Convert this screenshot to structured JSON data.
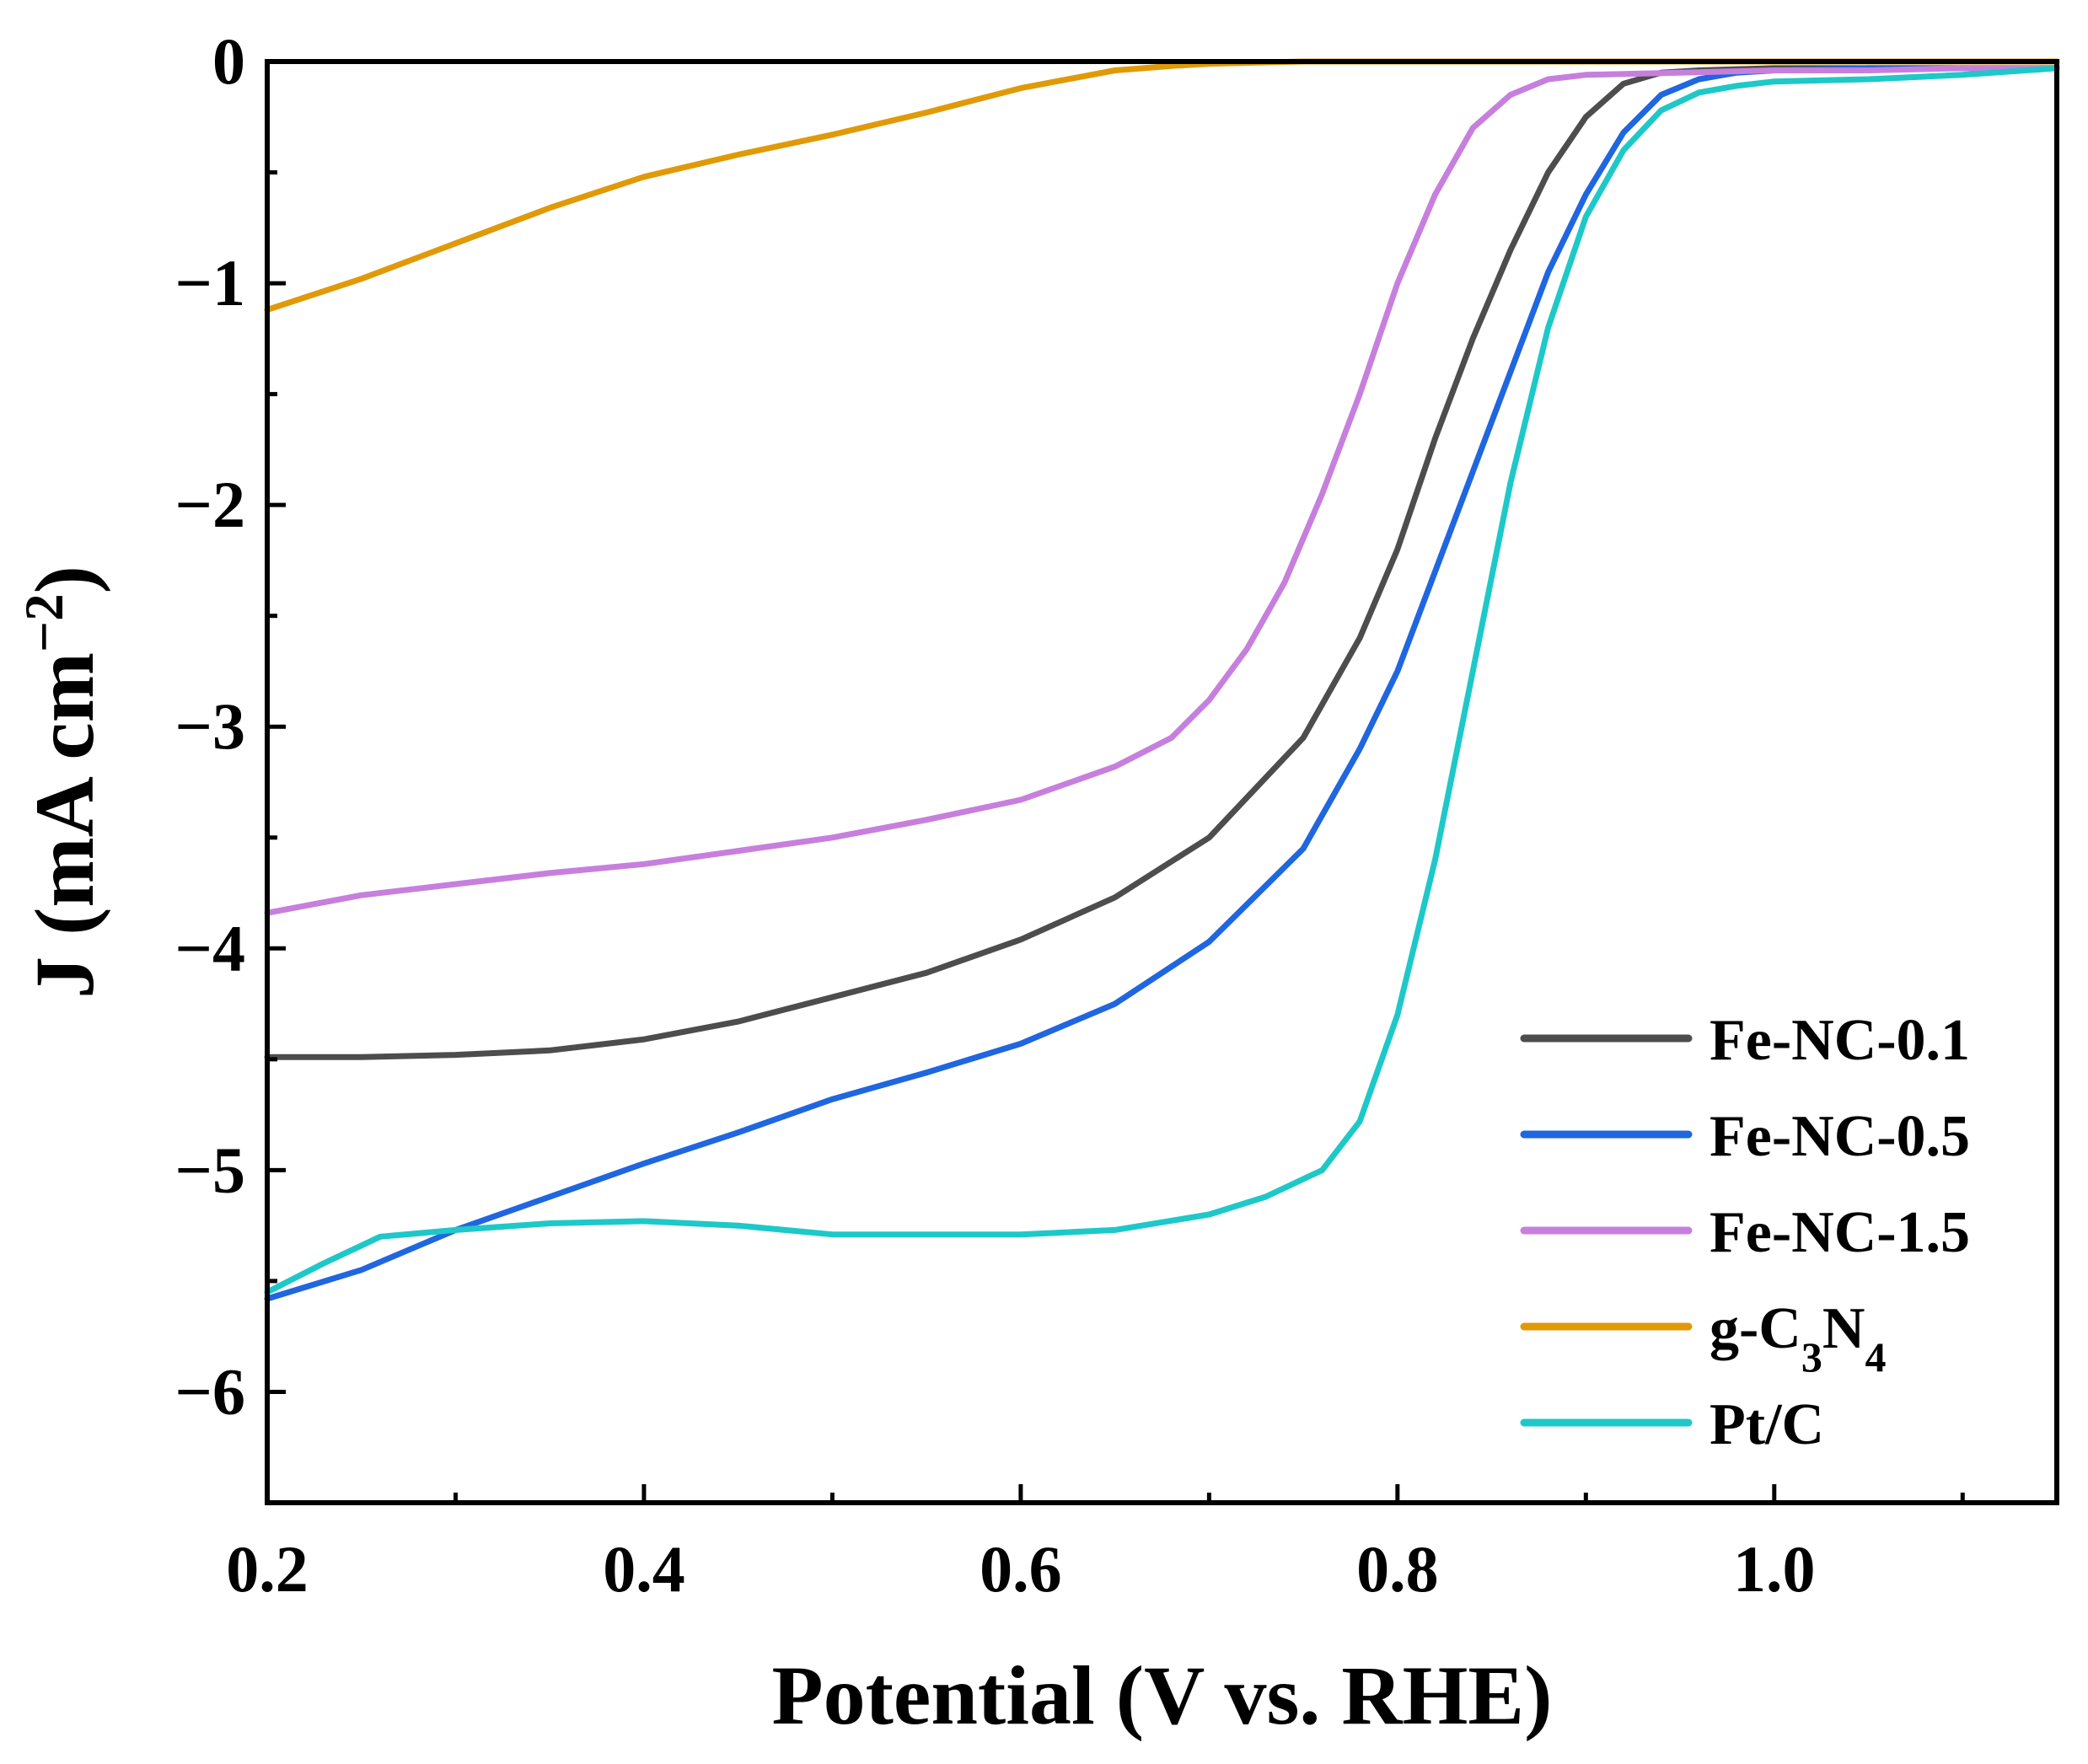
{
  "chart_data": {
    "type": "line",
    "title": "",
    "xlabel": "Potential (V vs. RHE)",
    "ylabel": {
      "main": "J (mA cm",
      "sup": "−2",
      "end": ")"
    },
    "xlim": [
      0.2,
      1.15
    ],
    "ylim": [
      -6.5,
      0
    ],
    "x_ticks": [
      {
        "value": 0.2,
        "label": "0.2"
      },
      {
        "value": 0.4,
        "label": "0.4"
      },
      {
        "value": 0.6,
        "label": "0.6"
      },
      {
        "value": 0.8,
        "label": "0.8"
      },
      {
        "value": 1.0,
        "label": "1.0"
      }
    ],
    "x_minor_ticks": [
      0.3,
      0.5,
      0.7,
      0.9,
      1.1
    ],
    "y_ticks": [
      {
        "value": 0,
        "label": "0"
      },
      {
        "value": -1,
        "label": "−1"
      },
      {
        "value": -2,
        "label": "−2"
      },
      {
        "value": -3,
        "label": "−3"
      },
      {
        "value": -4,
        "label": "−4"
      },
      {
        "value": -5,
        "label": "−5"
      },
      {
        "value": -6,
        "label": "−6"
      }
    ],
    "y_minor_ticks": [
      -0.5,
      -1.5,
      -2.5,
      -3.5,
      -4.5,
      -5.5
    ],
    "grid": false,
    "legend_position": "bottom-right",
    "series": [
      {
        "name": "Fe-NC-0.1",
        "legend": [
          {
            "t": "Fe-NC-0.1"
          }
        ],
        "color": "#4d4d4d",
        "x": [
          0.2,
          0.25,
          0.3,
          0.35,
          0.4,
          0.45,
          0.5,
          0.55,
          0.6,
          0.65,
          0.7,
          0.75,
          0.78,
          0.8,
          0.82,
          0.84,
          0.86,
          0.88,
          0.9,
          0.92,
          0.94,
          0.96,
          1.0,
          1.05,
          1.1,
          1.15
        ],
        "y": [
          -4.49,
          -4.49,
          -4.48,
          -4.46,
          -4.41,
          -4.33,
          -4.22,
          -4.11,
          -3.96,
          -3.77,
          -3.5,
          -3.05,
          -2.6,
          -2.2,
          -1.7,
          -1.25,
          -0.85,
          -0.5,
          -0.25,
          -0.1,
          -0.05,
          -0.04,
          -0.03,
          -0.03,
          -0.03,
          -0.03
        ]
      },
      {
        "name": "Fe-NC-0.5",
        "legend": [
          {
            "t": "Fe-NC-0.5"
          }
        ],
        "color": "#1f66e0",
        "x": [
          0.2,
          0.25,
          0.3,
          0.35,
          0.4,
          0.45,
          0.5,
          0.55,
          0.6,
          0.65,
          0.7,
          0.75,
          0.78,
          0.8,
          0.82,
          0.84,
          0.86,
          0.88,
          0.9,
          0.92,
          0.94,
          0.96,
          0.98,
          1.0,
          1.05,
          1.1,
          1.15
        ],
        "y": [
          -5.58,
          -5.45,
          -5.27,
          -5.12,
          -4.97,
          -4.83,
          -4.68,
          -4.56,
          -4.43,
          -4.25,
          -3.97,
          -3.55,
          -3.1,
          -2.75,
          -2.3,
          -1.85,
          -1.4,
          -0.95,
          -0.6,
          -0.32,
          -0.15,
          -0.08,
          -0.05,
          -0.04,
          -0.03,
          -0.03,
          -0.03
        ]
      },
      {
        "name": "Fe-NC-1.5",
        "legend": [
          {
            "t": "Fe-NC-1.5"
          }
        ],
        "color": "#c77fdd",
        "x": [
          0.2,
          0.25,
          0.3,
          0.35,
          0.4,
          0.45,
          0.5,
          0.55,
          0.6,
          0.65,
          0.68,
          0.7,
          0.72,
          0.74,
          0.76,
          0.78,
          0.8,
          0.82,
          0.84,
          0.86,
          0.88,
          0.9,
          0.95,
          1.0,
          1.05,
          1.1,
          1.15
        ],
        "y": [
          -3.84,
          -3.76,
          -3.71,
          -3.66,
          -3.62,
          -3.56,
          -3.5,
          -3.42,
          -3.33,
          -3.18,
          -3.05,
          -2.88,
          -2.65,
          -2.35,
          -1.95,
          -1.5,
          -1.0,
          -0.6,
          -0.3,
          -0.15,
          -0.08,
          -0.06,
          -0.05,
          -0.04,
          -0.04,
          -0.03,
          -0.03
        ]
      },
      {
        "name": "g-C3N4",
        "legend": [
          {
            "t": "g-C"
          },
          {
            "t": "3",
            "sub": true
          },
          {
            "t": "N"
          },
          {
            "t": "4",
            "sub": true
          }
        ],
        "color": "#e09a08",
        "x": [
          0.2,
          0.25,
          0.3,
          0.35,
          0.4,
          0.45,
          0.5,
          0.55,
          0.6,
          0.65,
          0.68,
          0.7,
          0.75,
          0.8,
          0.9,
          1.0,
          1.1,
          1.15
        ],
        "y": [
          -1.12,
          -0.98,
          -0.82,
          -0.66,
          -0.52,
          -0.42,
          -0.33,
          -0.23,
          -0.12,
          -0.04,
          -0.02,
          -0.01,
          0,
          0,
          0,
          0,
          0,
          0
        ]
      },
      {
        "name": "Pt/C",
        "legend": [
          {
            "t": "Pt/C"
          }
        ],
        "color": "#1ec8c8",
        "x": [
          0.2,
          0.23,
          0.26,
          0.3,
          0.35,
          0.4,
          0.45,
          0.5,
          0.55,
          0.6,
          0.65,
          0.7,
          0.73,
          0.76,
          0.78,
          0.8,
          0.82,
          0.84,
          0.86,
          0.88,
          0.9,
          0.92,
          0.94,
          0.96,
          0.98,
          1.0,
          1.05,
          1.1,
          1.15
        ],
        "y": [
          -5.55,
          -5.42,
          -5.3,
          -5.27,
          -5.24,
          -5.23,
          -5.25,
          -5.29,
          -5.29,
          -5.29,
          -5.27,
          -5.2,
          -5.12,
          -5.0,
          -4.78,
          -4.3,
          -3.6,
          -2.75,
          -1.9,
          -1.2,
          -0.7,
          -0.4,
          -0.22,
          -0.14,
          -0.11,
          -0.09,
          -0.08,
          -0.06,
          -0.03
        ]
      }
    ]
  }
}
